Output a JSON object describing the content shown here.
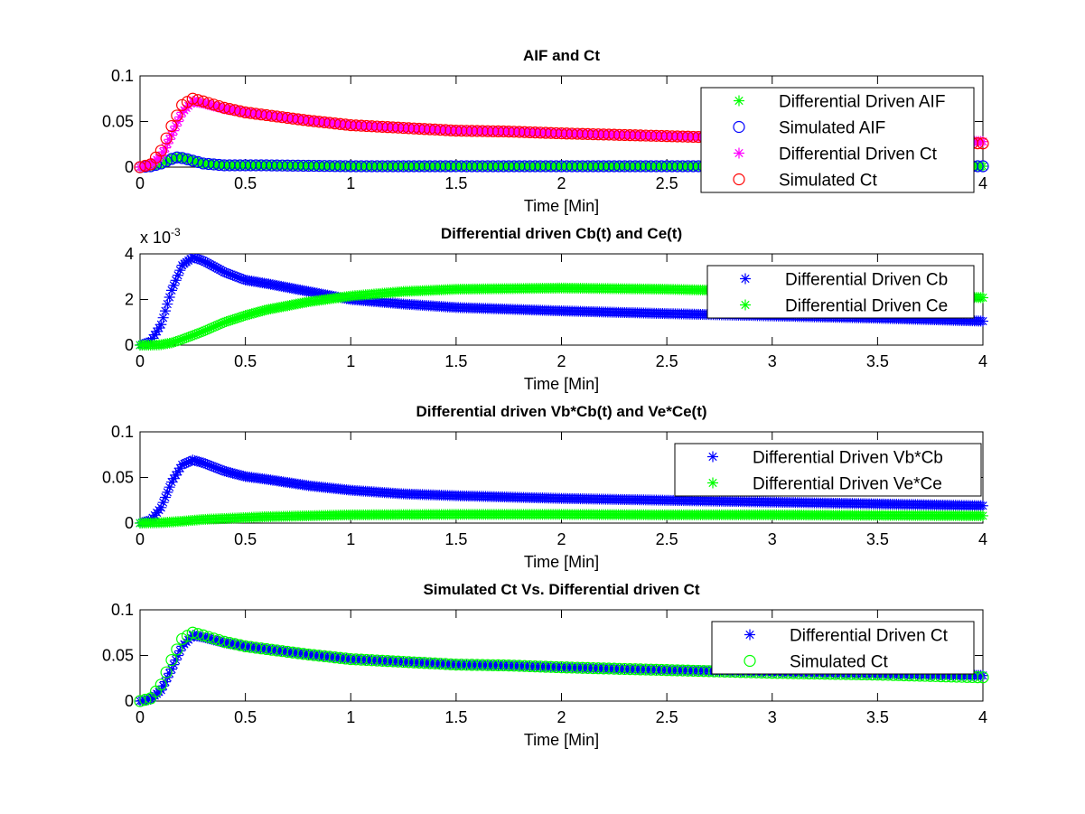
{
  "chart_data": [
    {
      "type": "scatter",
      "title": "AIF and Ct",
      "xlabel": "Time [Min]",
      "ylabel": "",
      "xlim": [
        0,
        4
      ],
      "ylim": [
        0,
        0.1
      ],
      "xticks": [
        "0",
        "0.5",
        "1",
        "1.5",
        "2",
        "2.5",
        "3",
        "3.5",
        "4"
      ],
      "yticks": [
        "0",
        "0.05",
        "0.1"
      ],
      "exponent_label": "",
      "legend_position": "top-right",
      "series": [
        {
          "name": "Differential Driven AIF",
          "marker": "star",
          "color": "#00ff00",
          "x": [
            0,
            0.05,
            0.1,
            0.15,
            0.18,
            0.22,
            0.3,
            0.4,
            0.6,
            1,
            1.5,
            2,
            2.5,
            3,
            3.5,
            4
          ],
          "y": [
            0,
            0.001,
            0.004,
            0.009,
            0.011,
            0.009,
            0.004,
            0.002,
            0.002,
            0.001,
            0.001,
            0.001,
            0.001,
            0.001,
            0.001,
            0.001
          ]
        },
        {
          "name": "Simulated AIF",
          "marker": "circle",
          "color": "#0000ff",
          "x": [
            0,
            0.05,
            0.1,
            0.15,
            0.18,
            0.22,
            0.3,
            0.4,
            0.6,
            1,
            1.5,
            2,
            2.5,
            3,
            3.5,
            4
          ],
          "y": [
            0,
            0.001,
            0.004,
            0.009,
            0.011,
            0.009,
            0.004,
            0.002,
            0.002,
            0.001,
            0.001,
            0.001,
            0.001,
            0.001,
            0.001,
            0.001
          ]
        },
        {
          "name": "Differential Driven Ct",
          "marker": "star",
          "color": "#ff00ff",
          "x": [
            0,
            0.05,
            0.1,
            0.15,
            0.2,
            0.25,
            0.3,
            0.4,
            0.5,
            0.6,
            0.8,
            1,
            1.25,
            1.5,
            1.75,
            2,
            2.5,
            3,
            3.5,
            4
          ],
          "y": [
            0,
            0.002,
            0.012,
            0.035,
            0.06,
            0.072,
            0.07,
            0.064,
            0.06,
            0.057,
            0.051,
            0.046,
            0.043,
            0.04,
            0.039,
            0.037,
            0.034,
            0.032,
            0.03,
            0.028
          ]
        },
        {
          "name": "Simulated Ct",
          "marker": "circle",
          "color": "#ff0000",
          "x": [
            0,
            0.05,
            0.1,
            0.15,
            0.2,
            0.25,
            0.3,
            0.4,
            0.5,
            0.6,
            0.8,
            1,
            1.25,
            1.5,
            1.75,
            2,
            2.5,
            3,
            3.5,
            4
          ],
          "y": [
            0,
            0.003,
            0.018,
            0.045,
            0.068,
            0.075,
            0.072,
            0.065,
            0.06,
            0.057,
            0.051,
            0.046,
            0.043,
            0.04,
            0.039,
            0.037,
            0.034,
            0.031,
            0.029,
            0.026
          ]
        }
      ]
    },
    {
      "type": "scatter",
      "title": "Differential driven Cb(t) and Ce(t)",
      "xlabel": "Time [Min]",
      "ylabel": "",
      "xlim": [
        0,
        4
      ],
      "ylim": [
        0,
        4
      ],
      "xticks": [
        "0",
        "0.5",
        "1",
        "1.5",
        "2",
        "2.5",
        "3",
        "3.5",
        "4"
      ],
      "yticks": [
        "0",
        "2",
        "4"
      ],
      "exponent_label": "x 10",
      "exponent_power": "-3",
      "legend_position": "top-right",
      "series": [
        {
          "name": "Differential Driven Cb",
          "marker": "star",
          "color": "#0000ff",
          "x": [
            0,
            0.05,
            0.1,
            0.15,
            0.2,
            0.25,
            0.3,
            0.4,
            0.5,
            0.6,
            0.8,
            1,
            1.25,
            1.5,
            2,
            2.5,
            3,
            3.5,
            4
          ],
          "y": [
            0,
            0.15,
            0.9,
            2.4,
            3.5,
            3.85,
            3.7,
            3.2,
            2.85,
            2.7,
            2.35,
            2.0,
            1.8,
            1.65,
            1.5,
            1.38,
            1.28,
            1.18,
            1.05
          ]
        },
        {
          "name": "Differential Driven Ce",
          "marker": "star",
          "color": "#00ff00",
          "x": [
            0,
            0.05,
            0.1,
            0.15,
            0.2,
            0.3,
            0.4,
            0.5,
            0.6,
            0.8,
            1,
            1.25,
            1.5,
            2,
            2.5,
            3,
            3.5,
            4
          ],
          "y": [
            0,
            0,
            0.02,
            0.1,
            0.25,
            0.6,
            1.0,
            1.3,
            1.55,
            1.9,
            2.15,
            2.35,
            2.45,
            2.5,
            2.45,
            2.35,
            2.22,
            2.08
          ]
        }
      ]
    },
    {
      "type": "scatter",
      "title": "Differential driven Vb*Cb(t) and Ve*Ce(t)",
      "xlabel": "Time [Min]",
      "ylabel": "",
      "xlim": [
        0,
        4
      ],
      "ylim": [
        0,
        0.1
      ],
      "xticks": [
        "0",
        "0.5",
        "1",
        "1.5",
        "2",
        "2.5",
        "3",
        "3.5",
        "4"
      ],
      "yticks": [
        "0",
        "0.05",
        "0.1"
      ],
      "exponent_label": "",
      "legend_position": "top-right",
      "series": [
        {
          "name": "Differential Driven Vb*Cb",
          "marker": "star",
          "color": "#0000ff",
          "x": [
            0,
            0.05,
            0.1,
            0.15,
            0.2,
            0.25,
            0.3,
            0.4,
            0.5,
            0.6,
            0.8,
            1,
            1.25,
            1.5,
            2,
            2.5,
            3,
            3.5,
            4
          ],
          "y": [
            0,
            0.003,
            0.017,
            0.045,
            0.064,
            0.069,
            0.066,
            0.057,
            0.051,
            0.048,
            0.041,
            0.036,
            0.032,
            0.03,
            0.027,
            0.025,
            0.023,
            0.021,
            0.019
          ]
        },
        {
          "name": "Differential Driven Ve*Ce",
          "marker": "star",
          "color": "#00ff00",
          "x": [
            0,
            0.1,
            0.2,
            0.3,
            0.4,
            0.5,
            0.6,
            0.8,
            1,
            1.5,
            2,
            2.5,
            3,
            3.5,
            4
          ],
          "y": [
            0,
            0.0005,
            0.002,
            0.004,
            0.005,
            0.006,
            0.007,
            0.008,
            0.009,
            0.0095,
            0.0095,
            0.009,
            0.009,
            0.0085,
            0.008
          ]
        }
      ]
    },
    {
      "type": "scatter",
      "title": "Simulated Ct Vs. Differential driven Ct",
      "xlabel": "Time [Min]",
      "ylabel": "",
      "xlim": [
        0,
        4
      ],
      "ylim": [
        0,
        0.1
      ],
      "xticks": [
        "0",
        "0.5",
        "1",
        "1.5",
        "2",
        "2.5",
        "3",
        "3.5",
        "4"
      ],
      "yticks": [
        "0",
        "0.05",
        "0.1"
      ],
      "exponent_label": "",
      "legend_position": "top-right",
      "series": [
        {
          "name": "Differential Driven Ct",
          "marker": "star",
          "color": "#0000ff",
          "x": [
            0,
            0.05,
            0.1,
            0.15,
            0.2,
            0.25,
            0.3,
            0.4,
            0.5,
            0.6,
            0.8,
            1,
            1.25,
            1.5,
            1.75,
            2,
            2.5,
            3,
            3.5,
            4
          ],
          "y": [
            0,
            0.002,
            0.012,
            0.035,
            0.06,
            0.072,
            0.07,
            0.064,
            0.06,
            0.057,
            0.051,
            0.046,
            0.043,
            0.04,
            0.039,
            0.037,
            0.034,
            0.032,
            0.03,
            0.028
          ]
        },
        {
          "name": "Simulated Ct",
          "marker": "circle",
          "color": "#00ff00",
          "x": [
            0,
            0.05,
            0.1,
            0.15,
            0.2,
            0.25,
            0.3,
            0.4,
            0.5,
            0.6,
            0.8,
            1,
            1.25,
            1.5,
            1.75,
            2,
            2.5,
            3,
            3.5,
            4
          ],
          "y": [
            0,
            0.003,
            0.018,
            0.045,
            0.068,
            0.075,
            0.072,
            0.065,
            0.06,
            0.057,
            0.051,
            0.046,
            0.043,
            0.04,
            0.039,
            0.037,
            0.034,
            0.031,
            0.029,
            0.026
          ]
        }
      ]
    }
  ]
}
